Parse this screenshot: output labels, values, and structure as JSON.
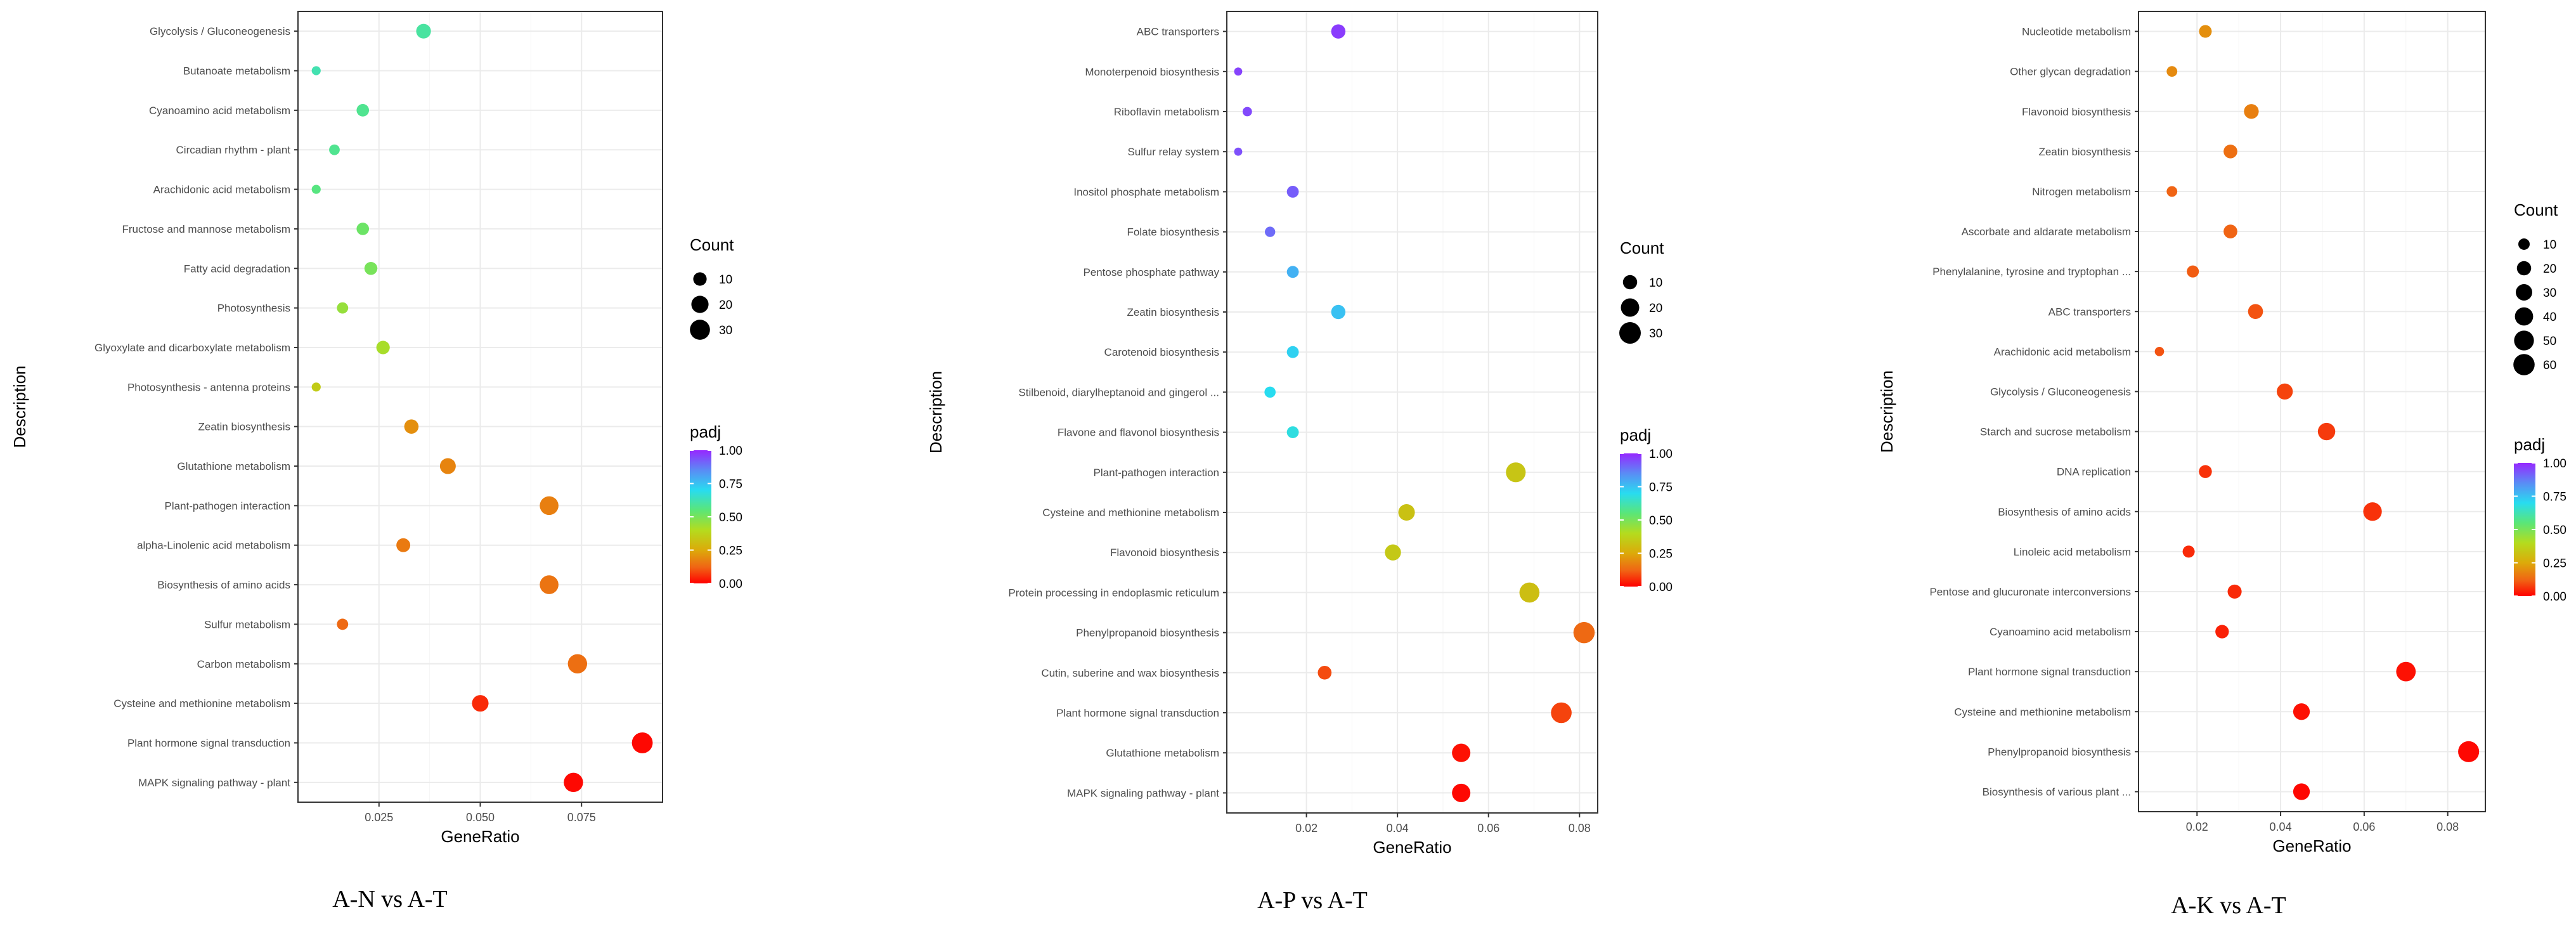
{
  "chart_data": [
    {
      "type": "scatter",
      "caption": "A-N vs A-T",
      "xlabel": "GeneRatio",
      "ylabel": "Description",
      "xlim": [
        0.005,
        0.095
      ],
      "xticks": [
        0.025,
        0.05,
        0.075
      ],
      "xtick_labels": [
        "0.025",
        "0.050",
        "0.075"
      ],
      "count_legend": {
        "title": "Count",
        "values": [
          10,
          20,
          30
        ]
      },
      "count_range": [
        1,
        36
      ],
      "padj_legend": {
        "title": "padj",
        "ticks": [
          1.0,
          0.75,
          0.5,
          0.25,
          0.0
        ],
        "labels": [
          "1.00",
          "0.75",
          "0.50",
          "0.25",
          "0.00"
        ]
      },
      "points": [
        {
          "term": "Glycolysis / Gluconeogenesis",
          "x": 0.036,
          "count": 13,
          "padj": 0.6
        },
        {
          "term": "Butanoate metabolism",
          "x": 0.0095,
          "count": 3,
          "padj": 0.62
        },
        {
          "term": "Cyanoamino acid metabolism",
          "x": 0.021,
          "count": 8,
          "padj": 0.58
        },
        {
          "term": "Circadian rhythm - plant",
          "x": 0.014,
          "count": 5,
          "padj": 0.58
        },
        {
          "term": "Arachidonic acid metabolism",
          "x": 0.0095,
          "count": 3,
          "padj": 0.56
        },
        {
          "term": "Fructose and mannose metabolism",
          "x": 0.021,
          "count": 8,
          "padj": 0.52
        },
        {
          "term": "Fatty acid degradation",
          "x": 0.023,
          "count": 9,
          "padj": 0.5
        },
        {
          "term": "Photosynthesis",
          "x": 0.016,
          "count": 6,
          "padj": 0.45
        },
        {
          "term": "Glyoxylate and dicarboxylate metabolism",
          "x": 0.026,
          "count": 10,
          "padj": 0.42
        },
        {
          "term": "Photosynthesis - antenna proteins",
          "x": 0.0095,
          "count": 3,
          "padj": 0.35
        },
        {
          "term": "Zeatin biosynthesis",
          "x": 0.033,
          "count": 12,
          "padj": 0.2
        },
        {
          "term": "Glutathione metabolism",
          "x": 0.042,
          "count": 16,
          "padj": 0.18
        },
        {
          "term": "Plant-pathogen interaction",
          "x": 0.067,
          "count": 25,
          "padj": 0.17
        },
        {
          "term": "alpha-Linolenic acid metabolism",
          "x": 0.031,
          "count": 11,
          "padj": 0.16
        },
        {
          "term": "Biosynthesis of amino acids",
          "x": 0.067,
          "count": 25,
          "padj": 0.15
        },
        {
          "term": "Sulfur metabolism",
          "x": 0.016,
          "count": 6,
          "padj": 0.13
        },
        {
          "term": "Carbon metabolism",
          "x": 0.074,
          "count": 27,
          "padj": 0.14
        },
        {
          "term": "Cysteine and methionine metabolism",
          "x": 0.05,
          "count": 18,
          "padj": 0.05
        },
        {
          "term": "Plant hormone signal transduction",
          "x": 0.09,
          "count": 33,
          "padj": 0.01
        },
        {
          "term": "MAPK signaling pathway - plant",
          "x": 0.073,
          "count": 27,
          "padj": 0.01
        }
      ]
    },
    {
      "type": "scatter",
      "caption": "A-P vs A-T",
      "xlabel": "GeneRatio",
      "ylabel": "Description",
      "xlim": [
        0.0025,
        0.084
      ],
      "xticks": [
        0.02,
        0.04,
        0.06,
        0.08
      ],
      "xtick_labels": [
        "0.02",
        "0.04",
        "0.06",
        "0.08"
      ],
      "count_legend": {
        "title": "Count",
        "values": [
          10,
          20,
          30
        ]
      },
      "count_range": [
        1,
        30
      ],
      "padj_legend": {
        "title": "padj",
        "ticks": [
          1.0,
          0.75,
          0.5,
          0.25,
          0.0
        ],
        "labels": [
          "1.00",
          "0.75",
          "0.50",
          "0.25",
          "0.00"
        ]
      },
      "points": [
        {
          "term": "ABC transporters",
          "x": 0.027,
          "count": 10,
          "padj": 0.97
        },
        {
          "term": "Monoterpenoid biosynthesis",
          "x": 0.005,
          "count": 2,
          "padj": 0.96
        },
        {
          "term": "Riboflavin metabolism",
          "x": 0.007,
          "count": 3,
          "padj": 0.95
        },
        {
          "term": "Sulfur relay system",
          "x": 0.005,
          "count": 2,
          "padj": 0.94
        },
        {
          "term": "Inositol phosphate metabolism",
          "x": 0.017,
          "count": 6,
          "padj": 0.92
        },
        {
          "term": "Folate biosynthesis",
          "x": 0.012,
          "count": 4,
          "padj": 0.9
        },
        {
          "term": "Pentose phosphate pathway",
          "x": 0.017,
          "count": 6,
          "padj": 0.78
        },
        {
          "term": "Zeatin biosynthesis",
          "x": 0.027,
          "count": 10,
          "padj": 0.75
        },
        {
          "term": "Carotenoid biosynthesis",
          "x": 0.017,
          "count": 6,
          "padj": 0.72
        },
        {
          "term": "Stilbenoid, diarylheptanoid and gingerol ...",
          "x": 0.012,
          "count": 5,
          "padj": 0.7
        },
        {
          "term": "Flavone and flavonol biosynthesis",
          "x": 0.017,
          "count": 6,
          "padj": 0.68
        },
        {
          "term": "Plant-pathogen interaction",
          "x": 0.066,
          "count": 24,
          "padj": 0.33
        },
        {
          "term": "Cysteine and methionine metabolism",
          "x": 0.042,
          "count": 15,
          "padj": 0.32
        },
        {
          "term": "Flavonoid biosynthesis",
          "x": 0.039,
          "count": 14,
          "padj": 0.34
        },
        {
          "term": "Protein processing in endoplasmic reticulum",
          "x": 0.069,
          "count": 25,
          "padj": 0.31
        },
        {
          "term": "Phenylpropanoid biosynthesis",
          "x": 0.081,
          "count": 29,
          "padj": 0.13
        },
        {
          "term": "Cutin, suberine and wax biosynthesis",
          "x": 0.024,
          "count": 9,
          "padj": 0.09
        },
        {
          "term": "Plant hormone signal transduction",
          "x": 0.076,
          "count": 27,
          "padj": 0.08
        },
        {
          "term": "Glutathione metabolism",
          "x": 0.054,
          "count": 20,
          "padj": 0.02
        },
        {
          "term": "MAPK signaling pathway - plant",
          "x": 0.054,
          "count": 20,
          "padj": 0.01
        }
      ]
    },
    {
      "type": "scatter",
      "caption": "A-K vs A-T",
      "xlabel": "GeneRatio",
      "ylabel": "Description",
      "xlim": [
        0.006,
        0.089
      ],
      "xticks": [
        0.02,
        0.04,
        0.06,
        0.08
      ],
      "xtick_labels": [
        "0.02",
        "0.04",
        "0.06",
        "0.08"
      ],
      "count_legend": {
        "title": "Count",
        "values": [
          10,
          20,
          30,
          40,
          50,
          60
        ]
      },
      "count_range": [
        1,
        62
      ],
      "padj_legend": {
        "title": "padj",
        "ticks": [
          1.0,
          0.75,
          0.5,
          0.25,
          0.0
        ],
        "labels": [
          "1.00",
          "0.75",
          "0.50",
          "0.25",
          "0.00"
        ]
      },
      "points": [
        {
          "term": "Nucleotide metabolism",
          "x": 0.022,
          "count": 14,
          "padj": 0.2
        },
        {
          "term": "Other glycan degradation",
          "x": 0.014,
          "count": 8,
          "padj": 0.19
        },
        {
          "term": "Flavonoid biosynthesis",
          "x": 0.033,
          "count": 22,
          "padj": 0.17
        },
        {
          "term": "Zeatin biosynthesis",
          "x": 0.028,
          "count": 18,
          "padj": 0.14
        },
        {
          "term": "Nitrogen metabolism",
          "x": 0.014,
          "count": 8,
          "padj": 0.12
        },
        {
          "term": "Ascorbate and aldarate metabolism",
          "x": 0.028,
          "count": 18,
          "padj": 0.12
        },
        {
          "term": "Phenylalanine, tyrosine and tryptophan ...",
          "x": 0.019,
          "count": 12,
          "padj": 0.11
        },
        {
          "term": "ABC transporters",
          "x": 0.034,
          "count": 23,
          "padj": 0.1
        },
        {
          "term": "Arachidonic acid metabolism",
          "x": 0.011,
          "count": 5,
          "padj": 0.1
        },
        {
          "term": "Glycolysis / Gluconeogenesis",
          "x": 0.041,
          "count": 28,
          "padj": 0.08
        },
        {
          "term": "Starch and sucrose metabolism",
          "x": 0.051,
          "count": 35,
          "padj": 0.07
        },
        {
          "term": "DNA replication",
          "x": 0.022,
          "count": 15,
          "padj": 0.06
        },
        {
          "term": "Biosynthesis of amino acids",
          "x": 0.062,
          "count": 42,
          "padj": 0.06
        },
        {
          "term": "Linoleic acid metabolism",
          "x": 0.018,
          "count": 12,
          "padj": 0.05
        },
        {
          "term": "Pentose and glucuronate interconversions",
          "x": 0.029,
          "count": 19,
          "padj": 0.05
        },
        {
          "term": "Cyanoamino acid metabolism",
          "x": 0.026,
          "count": 17,
          "padj": 0.04
        },
        {
          "term": "Plant hormone signal transduction",
          "x": 0.07,
          "count": 48,
          "padj": 0.02
        },
        {
          "term": "Cysteine and methionine metabolism",
          "x": 0.045,
          "count": 31,
          "padj": 0.02
        },
        {
          "term": "Phenylpropanoid biosynthesis",
          "x": 0.085,
          "count": 58,
          "padj": 0.01
        },
        {
          "term": "Biosynthesis of various plant ...",
          "x": 0.045,
          "count": 31,
          "padj": 0.01
        }
      ]
    }
  ]
}
